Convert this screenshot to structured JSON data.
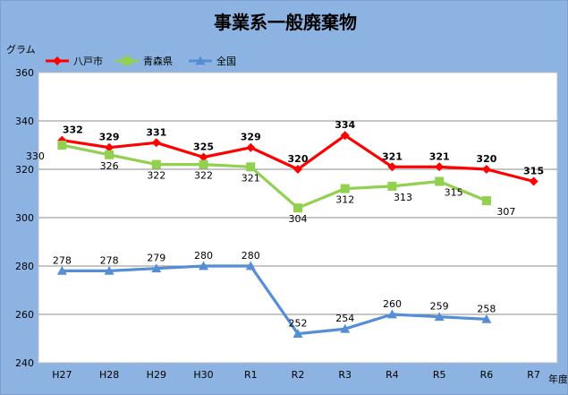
{
  "chart_data": {
    "type": "line",
    "title": "事業系一般廃棄物",
    "ylabel": "グラム",
    "xlabel": "年度",
    "categories": [
      "H27",
      "H28",
      "H29",
      "H30",
      "R1",
      "R2",
      "R3",
      "R4",
      "R5",
      "R6",
      "R7"
    ],
    "ylim": [
      240,
      360
    ],
    "yticks": [
      240,
      260,
      280,
      300,
      320,
      340,
      360
    ],
    "grid": true,
    "legend_position": "top-left",
    "series": [
      {
        "name": "八戸市",
        "color": "#ff0000",
        "marker": "diamond",
        "label_bold": true,
        "values": [
          332,
          329,
          331,
          325,
          329,
          320,
          334,
          321,
          321,
          320,
          315
        ]
      },
      {
        "name": "青森県",
        "color": "#92d050",
        "marker": "square",
        "label_bold": false,
        "values": [
          330,
          326,
          322,
          322,
          321,
          304,
          312,
          313,
          315,
          307,
          null
        ]
      },
      {
        "name": "全国",
        "color": "#558ed5",
        "marker": "triangle",
        "label_bold": false,
        "values": [
          278,
          278,
          279,
          280,
          280,
          252,
          254,
          260,
          259,
          258,
          null
        ]
      }
    ]
  }
}
